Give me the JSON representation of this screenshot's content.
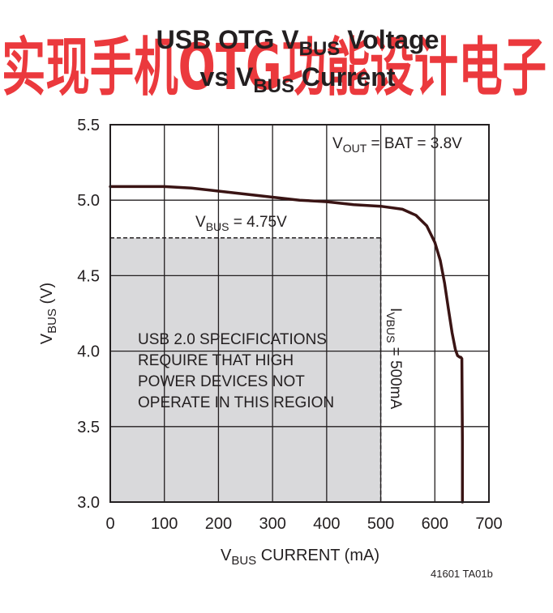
{
  "title": {
    "line1_main": "USB OTG V",
    "line1_sub": "BUS",
    "line1_tail": " Voltage",
    "line2_main": "vs V",
    "line2_sub": "BUS",
    "line2_tail": " Current"
  },
  "watermark": "实现手机OTG功能设计电子",
  "figure_id": "41601 TA01b",
  "annotations": {
    "vout_main": "V",
    "vout_sub": "OUT",
    "vout_tail": " = BAT = 3.8V",
    "vbus_main": "V",
    "vbus_sub": "BUS",
    "vbus_tail": " = 4.75V",
    "ibus_main": "I",
    "ibus_sub": "VBUS",
    "ibus_tail": " = 500mA",
    "region_lines": [
      "USB 2.0 SPECIFICATIONS",
      "REQUIRE THAT HIGH",
      "POWER DEVICES NOT",
      "OPERATE IN THIS REGION"
    ]
  },
  "chart_data": {
    "type": "line",
    "xlabel_main": "V",
    "xlabel_sub": "BUS",
    "xlabel_tail": " CURRENT (mA)",
    "ylabel_main": "V",
    "ylabel_sub": "BUS",
    "ylabel_tail": " (V)",
    "xlim": [
      0,
      700
    ],
    "ylim": [
      3.0,
      5.5
    ],
    "xticks": [
      0,
      100,
      200,
      300,
      400,
      500,
      600,
      700
    ],
    "xtick_labels": [
      "0",
      "100",
      "200",
      "300",
      "400",
      "500",
      "600",
      "700"
    ],
    "yticks": [
      3.0,
      3.5,
      4.0,
      4.5,
      5.0,
      5.5
    ],
    "ytick_labels": [
      "3.0",
      "3.5",
      "4.0",
      "4.5",
      "5.0",
      "5.5"
    ],
    "grid": true,
    "series": [
      {
        "x": [
          0,
          50,
          100,
          150,
          200,
          250,
          300,
          350,
          400,
          450,
          500,
          540,
          565,
          585,
          600,
          610,
          618,
          625,
          632,
          638,
          642,
          646,
          648,
          650,
          651,
          651
        ],
        "y": [
          5.09,
          5.09,
          5.09,
          5.08,
          5.06,
          5.04,
          5.02,
          5.0,
          4.99,
          4.97,
          4.96,
          4.94,
          4.9,
          4.83,
          4.72,
          4.6,
          4.45,
          4.28,
          4.12,
          4.01,
          3.97,
          3.96,
          3.96,
          3.95,
          3.4,
          3.0
        ]
      }
    ],
    "spec_region": {
      "x": [
        0,
        500
      ],
      "y": [
        3.0,
        4.75
      ]
    },
    "reference_lines": {
      "vbus_v": 4.75,
      "ibus_ma": 500
    },
    "colors": {
      "curve": "#3a1414",
      "region": "#d9d9db",
      "grid": "#231f20",
      "watermark": "#e8161b"
    }
  }
}
